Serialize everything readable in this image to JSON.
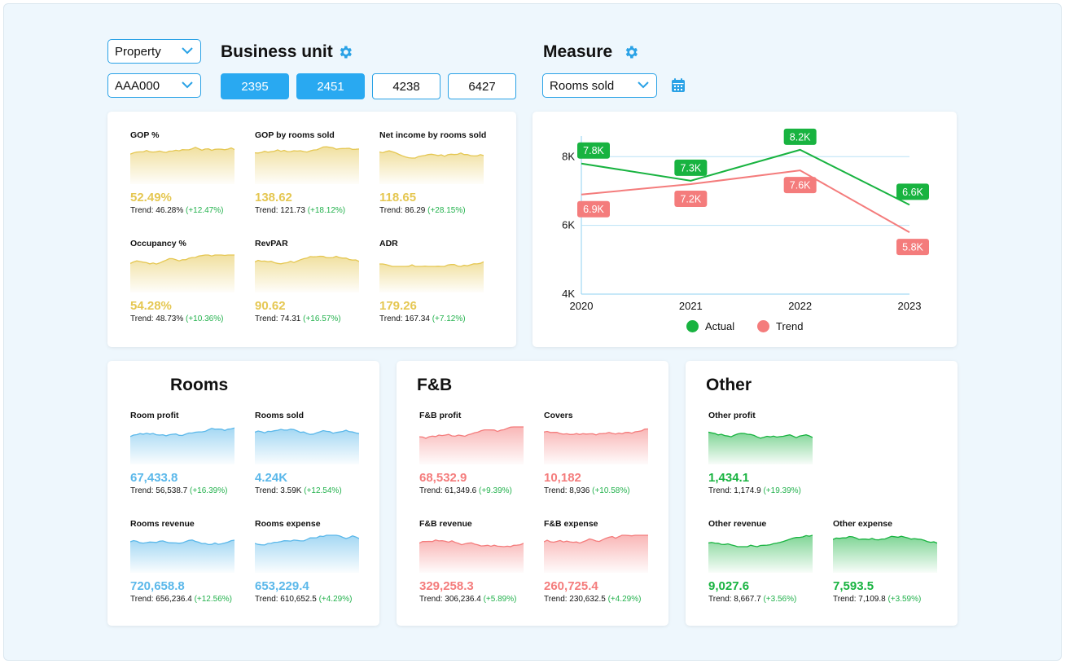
{
  "filters": {
    "property_select": "Property",
    "property_code_select": "AAA000",
    "business_unit_title": "Business unit",
    "business_units": [
      {
        "label": "2395",
        "active": true
      },
      {
        "label": "2451",
        "active": true
      },
      {
        "label": "4238",
        "active": false
      },
      {
        "label": "6427",
        "active": false
      }
    ],
    "measure_title": "Measure",
    "measure_select": "Rooms sold",
    "icons": {
      "settings": "gear-icon",
      "calendar": "calendar-icon",
      "dropdown": "chevron-down-icon"
    }
  },
  "colors": {
    "accent": "#29a9f1",
    "gold": "#e5c752",
    "blue": "#5bb8ea",
    "red": "#f47c7c",
    "green": "#18b340"
  },
  "summary": {
    "kpis": [
      {
        "label": "GOP %",
        "value": "52.49%",
        "trend": "Trend: 46.28%",
        "pct": "(+12.47%)"
      },
      {
        "label": "GOP by rooms sold",
        "value": "138.62",
        "trend": "Trend: 121.73",
        "pct": "(+18.12%)"
      },
      {
        "label": "Net income by rooms sold",
        "value": "118.65",
        "trend": "Trend: 86.29",
        "pct": "(+28.15%)"
      },
      {
        "label": "Occupancy %",
        "value": "54.28%",
        "trend": "Trend: 48.73%",
        "pct": "(+10.36%)"
      },
      {
        "label": "RevPAR",
        "value": "90.62",
        "trend": "Trend: 74.31",
        "pct": "(+16.57%)"
      },
      {
        "label": "ADR",
        "value": "179.26",
        "trend": "Trend: 167.34",
        "pct": "(+7.12%)"
      }
    ]
  },
  "chart_data": {
    "type": "line",
    "x": [
      "2020",
      "2021",
      "2022",
      "2023"
    ],
    "y_ticks": [
      "8K",
      "6K",
      "4K"
    ],
    "ylim": [
      4,
      8.6
    ],
    "grid": true,
    "legend_position": "bottom",
    "series": [
      {
        "name": "Actual",
        "values": [
          7.8,
          7.3,
          8.2,
          6.6
        ],
        "labels": [
          "7.8K",
          "7.3K",
          "8.2K",
          "6.6K"
        ],
        "color": "#18b340"
      },
      {
        "name": "Trend",
        "values": [
          6.9,
          7.2,
          7.6,
          5.8
        ],
        "labels": [
          "6.9K",
          "7.2K",
          "7.6K",
          "5.8K"
        ],
        "color": "#f47c7c"
      }
    ]
  },
  "rooms": {
    "title": "Rooms",
    "kpis": [
      {
        "label": "Room profit",
        "value": "67,433.8",
        "trend": "Trend: 56,538.7",
        "pct": "(+16.39%)"
      },
      {
        "label": "Rooms sold",
        "value": "4.24K",
        "trend": "Trend: 3.59K",
        "pct": "(+12.54%)"
      },
      {
        "label": "Rooms revenue",
        "value": "720,658.8",
        "trend": "Trend: 656,236.4",
        "pct": "(+12.56%)"
      },
      {
        "label": "Rooms expense",
        "value": "653,229.4",
        "trend": "Trend: 610,652.5",
        "pct": "(+4.29%)"
      }
    ]
  },
  "fnb": {
    "title": "F&B",
    "kpis": [
      {
        "label": "F&B profit",
        "value": "68,532.9",
        "trend": "Trend: 61,349.6",
        "pct": "(+9.39%)"
      },
      {
        "label": "Covers",
        "value": "10,182",
        "trend": "Trend: 8,936",
        "pct": "(+10.58%)"
      },
      {
        "label": "F&B revenue",
        "value": "329,258.3",
        "trend": "Trend: 306,236.4",
        "pct": "(+5.89%)"
      },
      {
        "label": "F&B  expense",
        "value": "260,725.4",
        "trend": "Trend: 230,632.5",
        "pct": "(+4.29%)"
      }
    ]
  },
  "other": {
    "title": "Other",
    "kpis": [
      {
        "label": "Other profit",
        "value": "1,434.1",
        "trend": "Trend: 1,174.9",
        "pct": "(+19.39%)"
      },
      {
        "label": "Other revenue",
        "value": "9,027.6",
        "trend": "Trend: 8,667.7",
        "pct": "(+3.56%)"
      },
      {
        "label": "Other expense",
        "value": "7,593.5",
        "trend": "Trend: 7,109.8",
        "pct": "(+3.59%)"
      }
    ]
  }
}
